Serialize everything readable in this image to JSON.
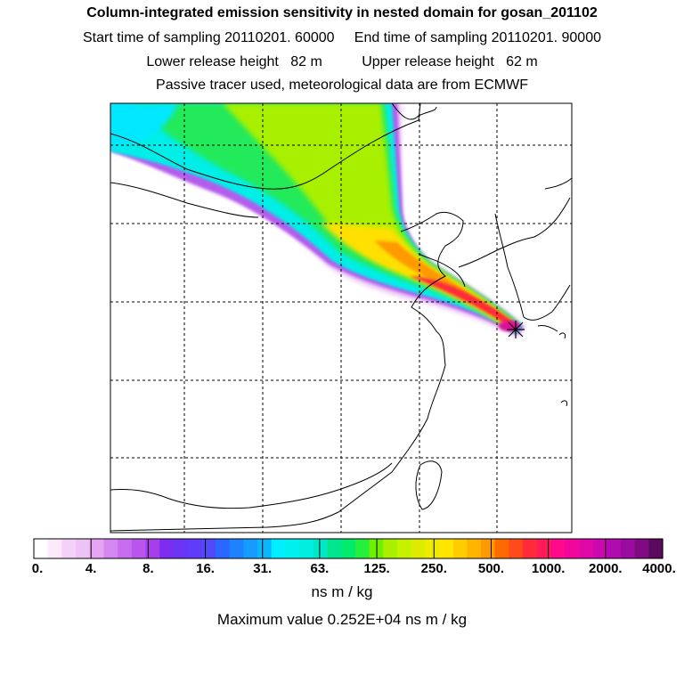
{
  "header": {
    "title": "Column-integrated emission sensitivity in nested domain for gosan_201102",
    "sampling_line": "Start time of sampling 20110201. 60000     End time of sampling 20110201. 90000",
    "release_line": "Lower release height   82 m          Upper release height   62 m",
    "tracer_line": "Passive tracer used, meteorological data are from ECMWF"
  },
  "colorbar": {
    "labels": [
      "0.",
      "4.",
      "8.",
      "16.",
      "31.",
      "63.",
      "125.",
      "250.",
      "500.",
      "1000.",
      "2000.",
      "4000."
    ],
    "colors": [
      "#ffffff",
      "#fbe9fb",
      "#f4d2f7",
      "#efc2f5",
      "#e6a5f2",
      "#d487f0",
      "#c86bee",
      "#b954ec",
      "#a63fe9",
      "#7b2cf0",
      "#6a34f5",
      "#5e3cf8",
      "#5048fa",
      "#2a66ff",
      "#1d82ff",
      "#149cff",
      "#0cb5ff",
      "#00eeff",
      "#00f0f0",
      "#00eedd",
      "#00e8c8",
      "#00e68c",
      "#00ea6c",
      "#26ee3c",
      "#6ff000",
      "#a8f000",
      "#c5f000",
      "#dcec00",
      "#eeea00",
      "#ffe600",
      "#ffcc00",
      "#ffb400",
      "#ff9a00",
      "#ff6a00",
      "#ff4a1c",
      "#ff2a3a",
      "#ff1a5a",
      "#ff0a8c",
      "#f0089c",
      "#e008a6",
      "#cc08ae",
      "#b00ab0",
      "#9a0a9e",
      "#800a84",
      "#5a0a5e"
    ],
    "units": "ns m / kg",
    "max_value": "Maximum value  0.252E+04 ns m / kg"
  }
}
